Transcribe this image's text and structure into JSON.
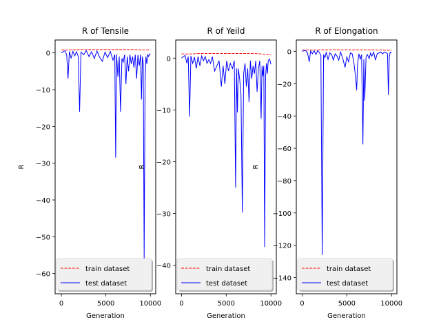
{
  "chart_data": [
    {
      "type": "line",
      "title": "R of Tensile",
      "xlabel": "Generation",
      "ylabel": "R",
      "xlim": [
        -700,
        10600
      ],
      "ylim": [
        -65.5,
        3.5
      ],
      "xticks": [
        0,
        5000,
        10000
      ],
      "xtick_labels": [
        "0",
        "5000",
        "10000"
      ],
      "yticks": [
        0,
        -10,
        -20,
        -30,
        -40,
        -50,
        -60
      ],
      "ytick_labels": [
        "0",
        "−10",
        "−20",
        "−30",
        "−40",
        "−50",
        "−60"
      ],
      "grid": false,
      "legend_position": "bottom",
      "legend": [
        "train dataset",
        "test dataset"
      ],
      "series": [
        {
          "name": "train dataset",
          "color": "#ff0000",
          "dash": "dashed",
          "points": [
            [
              0,
              0.8
            ],
            [
              1000,
              0.8
            ],
            [
              2000,
              0.9
            ],
            [
              3000,
              0.9
            ],
            [
              4000,
              0.9
            ],
            [
              5000,
              0.9
            ],
            [
              6000,
              0.9
            ],
            [
              7000,
              0.9
            ],
            [
              8000,
              0.9
            ],
            [
              9000,
              0.8
            ],
            [
              10000,
              0.8
            ]
          ]
        },
        {
          "name": "test dataset",
          "color": "#0000ff",
          "dash": "solid",
          "points": [
            [
              0,
              0
            ],
            [
              200,
              0.3
            ],
            [
              400,
              0.6
            ],
            [
              600,
              -0.5
            ],
            [
              750,
              -7
            ],
            [
              900,
              0.4
            ],
            [
              1100,
              -1.5
            ],
            [
              1300,
              0.4
            ],
            [
              1500,
              -0.8
            ],
            [
              1700,
              0.3
            ],
            [
              1900,
              -1
            ],
            [
              2050,
              -16
            ],
            [
              2200,
              0.2
            ],
            [
              2500,
              -0.5
            ],
            [
              2800,
              0.6
            ],
            [
              3100,
              -1
            ],
            [
              3400,
              0.3
            ],
            [
              3700,
              -1.5
            ],
            [
              4000,
              0.5
            ],
            [
              4300,
              -1.2
            ],
            [
              4600,
              -2.3
            ],
            [
              4900,
              0.2
            ],
            [
              5200,
              -1.3
            ],
            [
              5500,
              0.4
            ],
            [
              5800,
              -2
            ],
            [
              6000,
              -0.5
            ],
            [
              6100,
              -28.5
            ],
            [
              6200,
              -0.4
            ],
            [
              6350,
              -6.5
            ],
            [
              6500,
              -1
            ],
            [
              6650,
              -16
            ],
            [
              6800,
              -1.5
            ],
            [
              6950,
              -2.5
            ],
            [
              7100,
              -0.5
            ],
            [
              7250,
              -8.5
            ],
            [
              7400,
              -1
            ],
            [
              7550,
              -5
            ],
            [
              7700,
              -0.5
            ],
            [
              7850,
              -3
            ],
            [
              8000,
              -1
            ],
            [
              8150,
              -4
            ],
            [
              8300,
              -0.5
            ],
            [
              8450,
              -7
            ],
            [
              8600,
              -0.6
            ],
            [
              8750,
              -3.5
            ],
            [
              8900,
              -0.5
            ],
            [
              9000,
              -12.7
            ],
            [
              9100,
              -1
            ],
            [
              9200,
              -3
            ],
            [
              9300,
              -56
            ],
            [
              9400,
              -8
            ],
            [
              9500,
              -1
            ],
            [
              9600,
              -3
            ],
            [
              9700,
              -0.5
            ],
            [
              9800,
              -1
            ],
            [
              9900,
              -0.3
            ],
            [
              10000,
              -0.5
            ]
          ]
        }
      ]
    },
    {
      "type": "line",
      "title": "R of Yeild",
      "xlabel": "Generation",
      "ylabel": "R",
      "xlim": [
        -650,
        10600
      ],
      "ylim": [
        -45.5,
        3.5
      ],
      "xticks": [
        0,
        5000,
        10000
      ],
      "xtick_labels": [
        "0",
        "5000",
        "10000"
      ],
      "yticks": [
        0,
        -10,
        -20,
        -30,
        -40
      ],
      "ytick_labels": [
        "0",
        "−10",
        "−20",
        "−30",
        "−40"
      ],
      "grid": false,
      "legend_position": "bottom",
      "legend": [
        "train dataset",
        "test dataset"
      ],
      "series": [
        {
          "name": "train dataset",
          "color": "#ff0000",
          "dash": "dashed",
          "points": [
            [
              0,
              0.8
            ],
            [
              1000,
              0.8
            ],
            [
              2000,
              0.9
            ],
            [
              3000,
              0.9
            ],
            [
              4000,
              0.9
            ],
            [
              5000,
              0.9
            ],
            [
              6000,
              0.9
            ],
            [
              7000,
              0.9
            ],
            [
              8000,
              0.9
            ],
            [
              9000,
              0.8
            ],
            [
              10000,
              0.6
            ]
          ]
        },
        {
          "name": "test dataset",
          "color": "#0000ff",
          "dash": "solid",
          "points": [
            [
              0,
              0
            ],
            [
              200,
              0.3
            ],
            [
              400,
              0.5
            ],
            [
              600,
              -1
            ],
            [
              750,
              0.3
            ],
            [
              900,
              -11.3
            ],
            [
              1050,
              0.4
            ],
            [
              1250,
              -1
            ],
            [
              1450,
              0.2
            ],
            [
              1650,
              -2
            ],
            [
              1850,
              0.3
            ],
            [
              2050,
              -1.5
            ],
            [
              2250,
              0.4
            ],
            [
              2450,
              -0.5
            ],
            [
              2650,
              0.3
            ],
            [
              2850,
              -1
            ],
            [
              3050,
              -0.3
            ],
            [
              3250,
              -1
            ],
            [
              3450,
              0.3
            ],
            [
              3700,
              -2.5
            ],
            [
              3950,
              -1.5
            ],
            [
              4200,
              -0.5
            ],
            [
              4450,
              -5.5
            ],
            [
              4650,
              -1.5
            ],
            [
              4850,
              -5
            ],
            [
              5050,
              -0.5
            ],
            [
              5250,
              -2.5
            ],
            [
              5450,
              -1
            ],
            [
              5700,
              -2
            ],
            [
              5900,
              -0.5
            ],
            [
              6050,
              -25
            ],
            [
              6150,
              -2
            ],
            [
              6250,
              -10.5
            ],
            [
              6350,
              -2
            ],
            [
              6500,
              -4
            ],
            [
              6650,
              -7
            ],
            [
              6800,
              -29.8
            ],
            [
              6950,
              -3
            ],
            [
              7100,
              -1
            ],
            [
              7250,
              -5.5
            ],
            [
              7400,
              -2
            ],
            [
              7550,
              -8.5
            ],
            [
              7700,
              -0.5
            ],
            [
              7850,
              -4
            ],
            [
              8000,
              -1.5
            ],
            [
              8150,
              -3
            ],
            [
              8300,
              -0.5
            ],
            [
              8450,
              -6.5
            ],
            [
              8600,
              -2
            ],
            [
              8750,
              -0.5
            ],
            [
              8900,
              -11.7
            ],
            [
              9000,
              -1.5
            ],
            [
              9100,
              -3.5
            ],
            [
              9200,
              -1.5
            ],
            [
              9300,
              -36.5
            ],
            [
              9400,
              -3.5
            ],
            [
              9500,
              -1
            ],
            [
              9600,
              -3
            ],
            [
              9700,
              -0.5
            ],
            [
              9850,
              -0.2
            ],
            [
              10000,
              -1.2
            ]
          ]
        }
      ]
    },
    {
      "type": "line",
      "title": "R of Elongation",
      "xlabel": "Generation",
      "ylabel": "R",
      "xlim": [
        -650,
        10600
      ],
      "ylim": [
        -150,
        7
      ],
      "xticks": [
        0,
        5000,
        10000
      ],
      "xtick_labels": [
        "0",
        "5000",
        "10000"
      ],
      "yticks": [
        0,
        -20,
        -40,
        -60,
        -80,
        -100,
        -120,
        -140
      ],
      "ytick_labels": [
        "0",
        "−20",
        "−40",
        "−60",
        "−80",
        "−100",
        "−120",
        "−140"
      ],
      "grid": false,
      "legend_position": "bottom",
      "legend": [
        "train dataset",
        "test dataset"
      ],
      "series": [
        {
          "name": "train dataset",
          "color": "#ff0000",
          "dash": "dashed",
          "points": [
            [
              0,
              0.8
            ],
            [
              1000,
              0.8
            ],
            [
              2000,
              0.9
            ],
            [
              3000,
              0.9
            ],
            [
              4000,
              0.9
            ],
            [
              5000,
              0.9
            ],
            [
              6000,
              0.9
            ],
            [
              7000,
              0.9
            ],
            [
              8000,
              0.9
            ],
            [
              9000,
              0.8
            ],
            [
              10000,
              0.6
            ]
          ]
        },
        {
          "name": "test dataset",
          "color": "#0000ff",
          "dash": "solid",
          "points": [
            [
              0,
              0
            ],
            [
              200,
              0.3
            ],
            [
              400,
              0.5
            ],
            [
              600,
              -1
            ],
            [
              800,
              -6.5
            ],
            [
              950,
              0.2
            ],
            [
              1150,
              -1.5
            ],
            [
              1350,
              0.3
            ],
            [
              1550,
              -2
            ],
            [
              1750,
              0.5
            ],
            [
              1950,
              -1
            ],
            [
              2100,
              -2.5
            ],
            [
              2250,
              -126
            ],
            [
              2400,
              -2
            ],
            [
              2550,
              -4
            ],
            [
              2700,
              -0.5
            ],
            [
              2900,
              -5
            ],
            [
              3100,
              -1
            ],
            [
              3300,
              -2
            ],
            [
              3500,
              -5.5
            ],
            [
              3700,
              -1.5
            ],
            [
              3900,
              -3
            ],
            [
              4100,
              -5.5
            ],
            [
              4300,
              -0.5
            ],
            [
              4550,
              -4.5
            ],
            [
              4800,
              -10
            ],
            [
              5000,
              -3.5
            ],
            [
              5200,
              -6.5
            ],
            [
              5400,
              -1
            ],
            [
              5600,
              -1.5
            ],
            [
              5800,
              -7.5
            ],
            [
              6000,
              -17
            ],
            [
              6100,
              -24
            ],
            [
              6200,
              -8
            ],
            [
              6350,
              -1.5
            ],
            [
              6500,
              -5
            ],
            [
              6650,
              -2
            ],
            [
              6800,
              -57.6
            ],
            [
              6900,
              -5
            ],
            [
              7000,
              -30.5
            ],
            [
              7150,
              -3.5
            ],
            [
              7300,
              -2
            ],
            [
              7500,
              -4.5
            ],
            [
              7650,
              -1
            ],
            [
              7800,
              -3
            ],
            [
              8000,
              -0.5
            ],
            [
              8200,
              -5.5
            ],
            [
              8400,
              -1.5
            ],
            [
              8600,
              -1
            ],
            [
              8800,
              -0.5
            ],
            [
              9000,
              -1.5
            ],
            [
              9200,
              -0.5
            ],
            [
              9400,
              -1
            ],
            [
              9550,
              -1.5
            ],
            [
              9650,
              -27
            ],
            [
              9750,
              -3.5
            ],
            [
              9850,
              -0.5
            ],
            [
              10000,
              -1
            ]
          ]
        }
      ]
    }
  ]
}
